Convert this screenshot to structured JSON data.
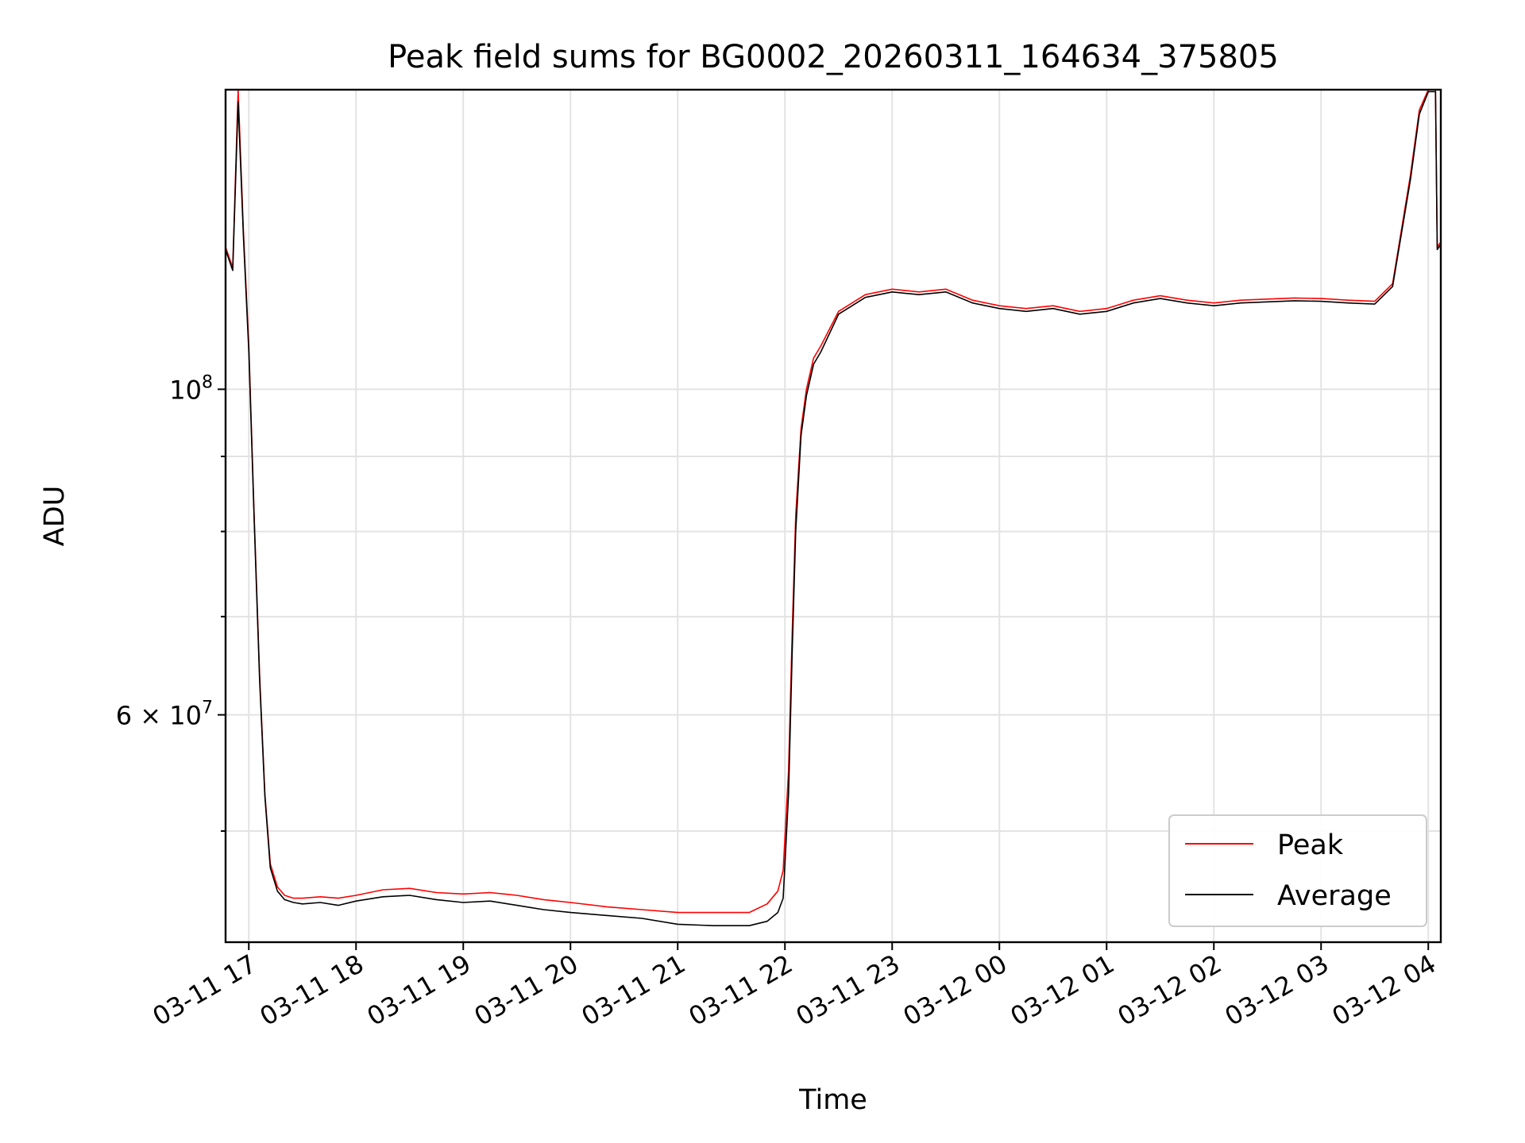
{
  "chart_data": {
    "type": "line",
    "title": "Peak field sums for BG0002_20260311_164634_375805",
    "xlabel": "Time",
    "ylabel": "ADU",
    "yscale": "log",
    "xlim": [
      "2026-03-11 16:47",
      "2026-03-12 04:07"
    ],
    "ylim": [
      42000000,
      160000000
    ],
    "grid": true,
    "legend_position": "lower-right",
    "x_ticks": [
      {
        "value": "2026-03-11 17:00",
        "label": "03-11 17"
      },
      {
        "value": "2026-03-11 18:00",
        "label": "03-11 18"
      },
      {
        "value": "2026-03-11 19:00",
        "label": "03-11 19"
      },
      {
        "value": "2026-03-11 20:00",
        "label": "03-11 20"
      },
      {
        "value": "2026-03-11 21:00",
        "label": "03-11 21"
      },
      {
        "value": "2026-03-11 22:00",
        "label": "03-11 22"
      },
      {
        "value": "2026-03-11 23:00",
        "label": "03-11 23"
      },
      {
        "value": "2026-03-12 00:00",
        "label": "03-12 00"
      },
      {
        "value": "2026-03-12 01:00",
        "label": "03-12 01"
      },
      {
        "value": "2026-03-12 02:00",
        "label": "03-12 02"
      },
      {
        "value": "2026-03-12 03:00",
        "label": "03-12 03"
      },
      {
        "value": "2026-03-12 04:00",
        "label": "03-12 04"
      }
    ],
    "y_major_ticks": [
      {
        "value": 60000000,
        "label": "6 × 10",
        "exponent": "7"
      },
      {
        "value": 100000000,
        "label": "10",
        "exponent": "8"
      }
    ],
    "y_minor_ticks": [
      50000000,
      70000000,
      80000000,
      90000000
    ],
    "series": [
      {
        "name": "Peak",
        "color": "#ff0000",
        "x": [
          "2026-03-11 16:47",
          "2026-03-11 16:51",
          "2026-03-11 16:54",
          "2026-03-11 16:57",
          "2026-03-11 17:00",
          "2026-03-11 17:03",
          "2026-03-11 17:06",
          "2026-03-11 17:09",
          "2026-03-11 17:12",
          "2026-03-11 17:16",
          "2026-03-11 17:20",
          "2026-03-11 17:25",
          "2026-03-11 17:30",
          "2026-03-11 17:40",
          "2026-03-11 17:50",
          "2026-03-11 18:00",
          "2026-03-11 18:15",
          "2026-03-11 18:30",
          "2026-03-11 18:45",
          "2026-03-11 19:00",
          "2026-03-11 19:15",
          "2026-03-11 19:30",
          "2026-03-11 19:45",
          "2026-03-11 20:00",
          "2026-03-11 20:20",
          "2026-03-11 20:40",
          "2026-03-11 21:00",
          "2026-03-11 21:20",
          "2026-03-11 21:40",
          "2026-03-11 21:50",
          "2026-03-11 21:56",
          "2026-03-11 21:59",
          "2026-03-11 22:02",
          "2026-03-11 22:04",
          "2026-03-11 22:06",
          "2026-03-11 22:09",
          "2026-03-11 22:12",
          "2026-03-11 22:16",
          "2026-03-11 22:20",
          "2026-03-11 22:30",
          "2026-03-11 22:45",
          "2026-03-11 23:00",
          "2026-03-11 23:15",
          "2026-03-11 23:30",
          "2026-03-11 23:45",
          "2026-03-12 00:00",
          "2026-03-12 00:15",
          "2026-03-12 00:30",
          "2026-03-12 00:45",
          "2026-03-12 01:00",
          "2026-03-12 01:15",
          "2026-03-12 01:30",
          "2026-03-12 01:45",
          "2026-03-12 02:00",
          "2026-03-12 02:15",
          "2026-03-12 02:30",
          "2026-03-12 02:45",
          "2026-03-12 03:00",
          "2026-03-12 03:15",
          "2026-03-12 03:30",
          "2026-03-12 03:40",
          "2026-03-12 03:50",
          "2026-03-12 03:55",
          "2026-03-12 04:00",
          "2026-03-12 04:04",
          "2026-03-12 04:05",
          "2026-03-12 04:07"
        ],
        "values": [
          125000000,
          121000000,
          160000000,
          128000000,
          107000000,
          82000000,
          64000000,
          53000000,
          47500000,
          45800000,
          45200000,
          45000000,
          45000000,
          45100000,
          45000000,
          45200000,
          45600000,
          45700000,
          45400000,
          45300000,
          45400000,
          45200000,
          44900000,
          44700000,
          44400000,
          44200000,
          44000000,
          44000000,
          44000000,
          44600000,
          45500000,
          47000000,
          55000000,
          68000000,
          82000000,
          94000000,
          100000000,
          105000000,
          107000000,
          113000000,
          116000000,
          117000000,
          116500000,
          117000000,
          115000000,
          114000000,
          113500000,
          114000000,
          113000000,
          113500000,
          115000000,
          115800000,
          115000000,
          114500000,
          115000000,
          115200000,
          115400000,
          115300000,
          115000000,
          114800000,
          118000000,
          140000000,
          155000000,
          160000000,
          160000000,
          125000000,
          126000000
        ]
      },
      {
        "name": "Average",
        "color": "#000000",
        "x": [
          "2026-03-11 16:47",
          "2026-03-11 16:51",
          "2026-03-11 16:54",
          "2026-03-11 16:57",
          "2026-03-11 17:00",
          "2026-03-11 17:03",
          "2026-03-11 17:06",
          "2026-03-11 17:09",
          "2026-03-11 17:12",
          "2026-03-11 17:16",
          "2026-03-11 17:20",
          "2026-03-11 17:25",
          "2026-03-11 17:30",
          "2026-03-11 17:40",
          "2026-03-11 17:50",
          "2026-03-11 18:00",
          "2026-03-11 18:15",
          "2026-03-11 18:30",
          "2026-03-11 18:45",
          "2026-03-11 19:00",
          "2026-03-11 19:15",
          "2026-03-11 19:30",
          "2026-03-11 19:45",
          "2026-03-11 20:00",
          "2026-03-11 20:20",
          "2026-03-11 20:40",
          "2026-03-11 21:00",
          "2026-03-11 21:20",
          "2026-03-11 21:40",
          "2026-03-11 21:50",
          "2026-03-11 21:56",
          "2026-03-11 21:59",
          "2026-03-11 22:02",
          "2026-03-11 22:04",
          "2026-03-11 22:06",
          "2026-03-11 22:09",
          "2026-03-11 22:12",
          "2026-03-11 22:16",
          "2026-03-11 22:20",
          "2026-03-11 22:30",
          "2026-03-11 22:45",
          "2026-03-11 23:00",
          "2026-03-11 23:15",
          "2026-03-11 23:30",
          "2026-03-11 23:45",
          "2026-03-12 00:00",
          "2026-03-12 00:15",
          "2026-03-12 00:30",
          "2026-03-12 00:45",
          "2026-03-12 01:00",
          "2026-03-12 01:15",
          "2026-03-12 01:30",
          "2026-03-12 01:45",
          "2026-03-12 02:00",
          "2026-03-12 02:15",
          "2026-03-12 02:30",
          "2026-03-12 02:45",
          "2026-03-12 03:00",
          "2026-03-12 03:15",
          "2026-03-12 03:30",
          "2026-03-12 03:40",
          "2026-03-12 03:50",
          "2026-03-12 03:55",
          "2026-03-12 04:00",
          "2026-03-12 04:04",
          "2026-03-12 04:05",
          "2026-03-12 04:07"
        ],
        "values": [
          124500000,
          120500000,
          157000000,
          127000000,
          106000000,
          81500000,
          63500000,
          52800000,
          47200000,
          45500000,
          44900000,
          44700000,
          44600000,
          44700000,
          44500000,
          44800000,
          45100000,
          45200000,
          44900000,
          44700000,
          44800000,
          44500000,
          44200000,
          44000000,
          43800000,
          43600000,
          43200000,
          43100000,
          43100000,
          43400000,
          44000000,
          45000000,
          53000000,
          66000000,
          80000000,
          93000000,
          99000000,
          104000000,
          106000000,
          112500000,
          115500000,
          116500000,
          116000000,
          116500000,
          114500000,
          113500000,
          113000000,
          113500000,
          112500000,
          113000000,
          114500000,
          115300000,
          114500000,
          114000000,
          114500000,
          114700000,
          114900000,
          114800000,
          114500000,
          114300000,
          117500000,
          139000000,
          154000000,
          159500000,
          159500000,
          124500000,
          125500000
        ]
      }
    ]
  }
}
